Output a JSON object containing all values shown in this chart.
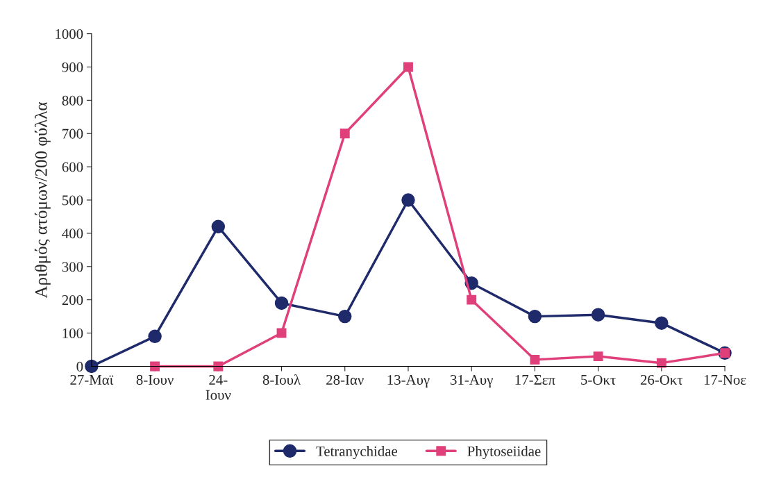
{
  "chart_data": {
    "type": "line",
    "ylabel": "Αριθμός ατόμων/200 φύλλα",
    "categories": [
      "27-Μαϊ",
      "8-Ιουν",
      "24-\nΙουν",
      "8-Ιουλ",
      "28-Ιαν",
      "13-Αυγ",
      "31-Αυγ",
      "17-Σεπ",
      "5-Οκτ",
      "26-Οκτ",
      "17-Νοε"
    ],
    "series": [
      {
        "name": "Tetranychidae",
        "color": "#1f2a6b",
        "marker": "circle",
        "values": [
          0,
          90,
          420,
          190,
          150,
          500,
          250,
          150,
          155,
          130,
          40
        ]
      },
      {
        "name": "Phytoseiidae",
        "color": "#e0407a",
        "marker": "square",
        "values": [
          null,
          0,
          0,
          100,
          700,
          900,
          200,
          20,
          30,
          10,
          40
        ]
      }
    ],
    "ylim": [
      0,
      1000
    ],
    "yticks": [
      0,
      100,
      200,
      300,
      400,
      500,
      600,
      700,
      800,
      900,
      1000
    ],
    "grid": false,
    "legend": "bottom",
    "line_style": "solid"
  }
}
